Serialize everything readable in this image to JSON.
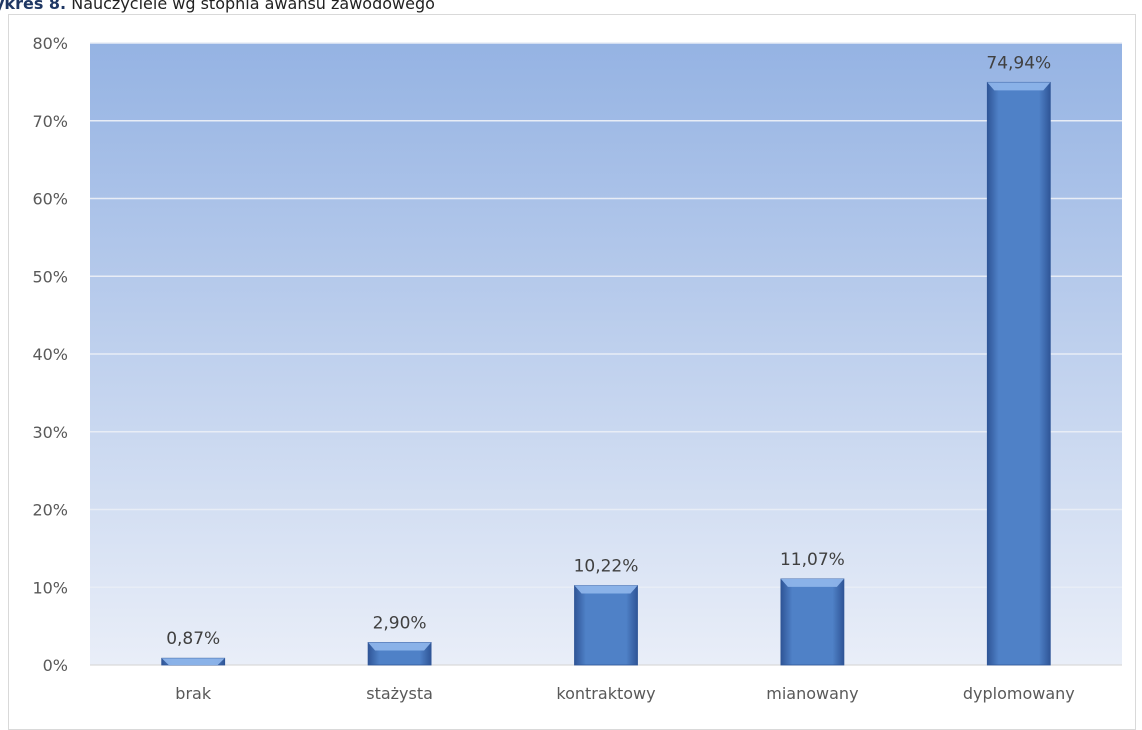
{
  "caption": {
    "lead": "ykres 8.",
    "text": "Nauczyciele wg stopnia awansu zawodowego"
  },
  "colors": {
    "plot_top": "#95b3e3",
    "plot_bottom": "#e9eef8",
    "gridline": "#e8edf6",
    "bar_fill": "#4f81c7",
    "bar_top": "#8db4ea",
    "bar_edge": "#2f5597"
  },
  "chart_data": {
    "type": "bar",
    "title": "",
    "xlabel": "",
    "ylabel": "",
    "categories": [
      "brak",
      "stażysta",
      "kontraktowy",
      "mianowany",
      "dyplomowany"
    ],
    "values": [
      0.87,
      2.9,
      10.22,
      11.07,
      74.94
    ],
    "data_labels": [
      "0,87%",
      "2,90%",
      "10,22%",
      "11,07%",
      "74,94%"
    ],
    "ylim": [
      0,
      80
    ],
    "y_ticks": [
      0,
      10,
      20,
      30,
      40,
      50,
      60,
      70,
      80
    ],
    "y_tick_labels": [
      "0%",
      "10%",
      "20%",
      "30%",
      "40%",
      "50%",
      "60%",
      "70%",
      "80%"
    ],
    "grid": true,
    "legend": "none"
  }
}
